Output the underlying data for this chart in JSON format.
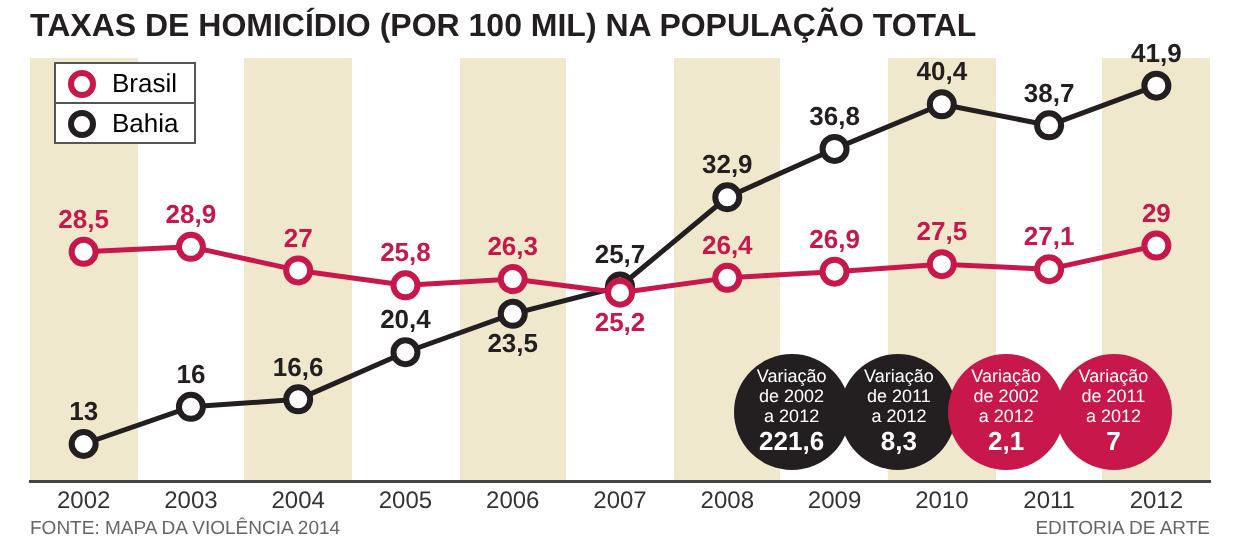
{
  "chart_data": {
    "type": "line",
    "title": "TAXAS DE HOMICÍDIO (POR 100 MIL) NA POPULAÇÃO TOTAL",
    "categories": [
      "2002",
      "2003",
      "2004",
      "2005",
      "2006",
      "2007",
      "2008",
      "2009",
      "2010",
      "2011",
      "2012"
    ],
    "series": [
      {
        "name": "Brasil",
        "color": "#c8174a",
        "values": [
          28.5,
          28.9,
          27,
          25.8,
          26.3,
          25.2,
          26.4,
          26.9,
          27.5,
          27.1,
          29
        ],
        "value_labels": [
          "28,5",
          "28,9",
          "27",
          "25,8",
          "26,3",
          "25,2",
          "26,4",
          "26,9",
          "27,5",
          "27,1",
          "29"
        ]
      },
      {
        "name": "Bahia",
        "color": "#231f20",
        "values": [
          13,
          16,
          16.6,
          20.4,
          23.5,
          25.7,
          32.9,
          36.8,
          40.4,
          38.7,
          41.9
        ],
        "value_labels": [
          "13",
          "16",
          "16,6",
          "20,4",
          "23,5",
          "25,7",
          "32,9",
          "36,8",
          "40,4",
          "38,7",
          "41,9"
        ]
      }
    ],
    "annotations": [
      "Variação de 2002 a 2012 221,6",
      "Variação de 2011 a 2012 8,3",
      "Variação de 2002 a 2012 2,1",
      "Variação de 2011 a 2012 7",
      "FONTE: MAPA DA VIOLÊNCIA 2014",
      "EDITORIA DE ARTE"
    ],
    "marker": "circle",
    "line_style": "solid",
    "legend": "top left",
    "grid": false
  }
}
